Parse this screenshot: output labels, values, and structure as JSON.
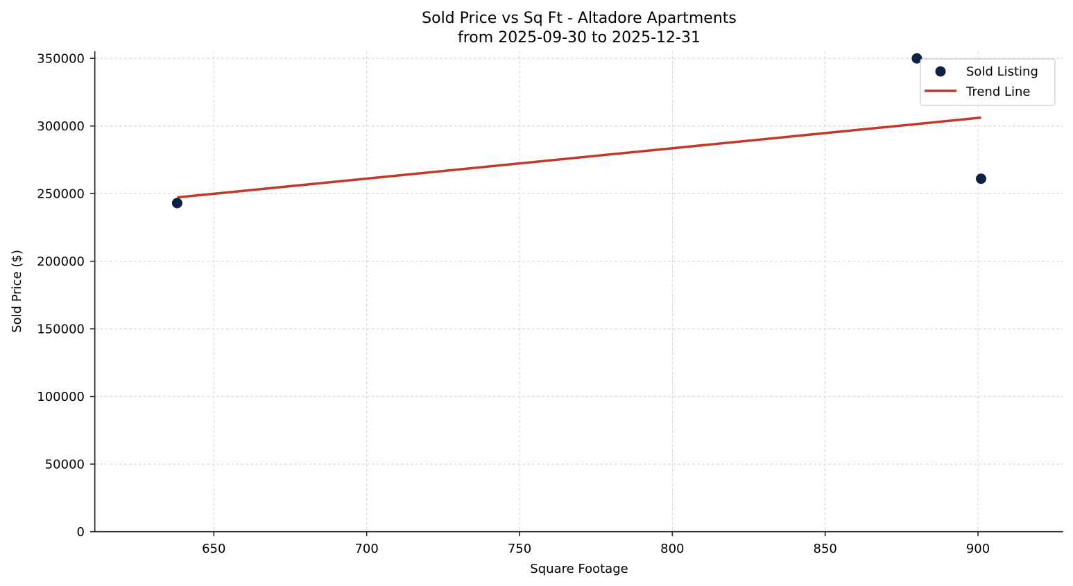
{
  "chart_data": {
    "type": "scatter",
    "title": "Sold Price vs Sq Ft - Altadore Apartments",
    "subtitle": "from 2025-09-30 to 2025-12-31",
    "xlabel": "Square Footage",
    "ylabel": "Sold Price ($)",
    "xlim": [
      611,
      928
    ],
    "ylim": [
      0,
      357000
    ],
    "xticks": [
      650,
      700,
      750,
      800,
      850,
      900
    ],
    "yticks": [
      0,
      50000,
      100000,
      150000,
      200000,
      250000,
      300000,
      350000
    ],
    "grid": true,
    "legend_position": "upper right",
    "series": [
      {
        "name": "Sold Listing",
        "type": "scatter",
        "color": "#0d2240",
        "points": [
          {
            "x": 638,
            "y": 243000
          },
          {
            "x": 880,
            "y": 350000
          },
          {
            "x": 901,
            "y": 261000
          }
        ]
      },
      {
        "name": "Trend Line",
        "type": "line",
        "color": "#c0392b",
        "points": [
          {
            "x": 638,
            "y": 247200
          },
          {
            "x": 901,
            "y": 306200
          }
        ]
      }
    ]
  },
  "legend": {
    "items": [
      {
        "label": "Sold Listing",
        "symbol": "dot-marker"
      },
      {
        "label": "Trend Line",
        "symbol": "line-marker"
      }
    ]
  }
}
